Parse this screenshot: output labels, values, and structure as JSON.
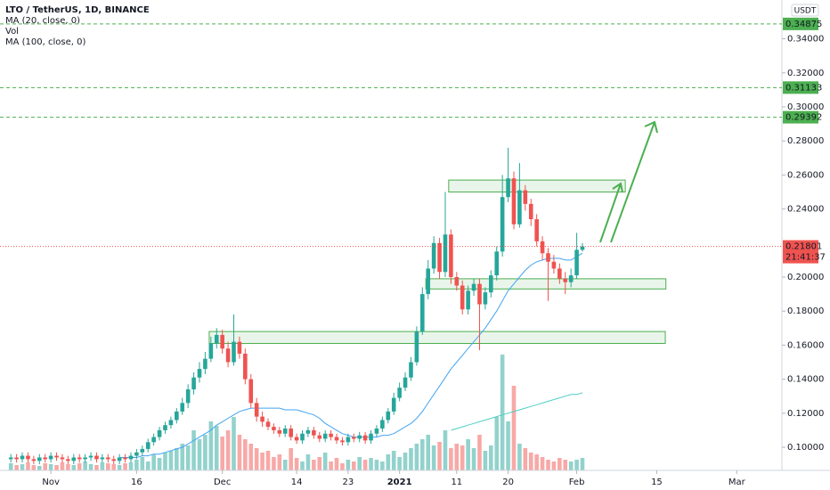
{
  "chart_data": {
    "type": "candlestick",
    "title": "LTO / TetherUS, 1D, BINANCE",
    "currency": "USDT",
    "up_color": "#26a69a",
    "down_color": "#ef5350",
    "xlim": [
      -8.9,
      127.9
    ],
    "xticks": [
      {
        "value": 0,
        "label": "Nov"
      },
      {
        "value": 15,
        "label": "16"
      },
      {
        "value": 30,
        "label": "Dec"
      },
      {
        "value": 43,
        "label": "14"
      },
      {
        "value": 52,
        "label": "23"
      },
      {
        "value": 61,
        "label": "2021"
      },
      {
        "value": 71,
        "label": "11"
      },
      {
        "value": 80,
        "label": "20"
      },
      {
        "value": 92,
        "label": "Feb"
      },
      {
        "value": 106,
        "label": "15"
      },
      {
        "value": 120,
        "label": "Mar"
      }
    ],
    "ylim": [
      0.0864,
      0.3628
    ],
    "yticks": [
      {
        "value": 0.1,
        "label": "0.10000"
      },
      {
        "value": 0.12,
        "label": "0.12000"
      },
      {
        "value": 0.14,
        "label": "0.14000"
      },
      {
        "value": 0.16,
        "label": "0.16000"
      },
      {
        "value": 0.18,
        "label": "0.18000"
      },
      {
        "value": 0.2,
        "label": "0.20000"
      },
      {
        "value": 0.24,
        "label": "0.24000"
      },
      {
        "value": 0.26,
        "label": "0.26000"
      },
      {
        "value": 0.28,
        "label": "0.28000"
      },
      {
        "value": 0.3,
        "label": "0.30000"
      },
      {
        "value": 0.32,
        "label": "0.32000"
      },
      {
        "value": 0.34,
        "label": "0.34000"
      }
    ],
    "x": [
      -7,
      -6,
      -5,
      -4,
      -3,
      -2,
      -1,
      0,
      1,
      2,
      3,
      4,
      5,
      6,
      7,
      8,
      9,
      10,
      11,
      12,
      13,
      14,
      15,
      16,
      17,
      18,
      19,
      20,
      21,
      22,
      23,
      24,
      25,
      26,
      27,
      28,
      29,
      30,
      31,
      32,
      33,
      34,
      35,
      36,
      37,
      38,
      39,
      40,
      41,
      42,
      43,
      44,
      45,
      46,
      47,
      48,
      49,
      50,
      51,
      52,
      53,
      54,
      55,
      56,
      57,
      58,
      59,
      60,
      61,
      62,
      63,
      64,
      65,
      66,
      67,
      68,
      69,
      70,
      71,
      72,
      73,
      74,
      75,
      76,
      77,
      78,
      79,
      80,
      81,
      82,
      83,
      84,
      85,
      86,
      87,
      88,
      89,
      90,
      91,
      92,
      93
    ],
    "open": [
      0.093,
      0.094,
      0.093,
      0.095,
      0.093,
      0.092,
      0.094,
      0.093,
      0.095,
      0.094,
      0.093,
      0.092,
      0.094,
      0.093,
      0.094,
      0.095,
      0.093,
      0.094,
      0.093,
      0.092,
      0.094,
      0.093,
      0.095,
      0.097,
      0.099,
      0.103,
      0.106,
      0.11,
      0.113,
      0.116,
      0.121,
      0.126,
      0.134,
      0.141,
      0.146,
      0.152,
      0.161,
      0.166,
      0.158,
      0.15,
      0.162,
      0.155,
      0.14,
      0.126,
      0.118,
      0.115,
      0.112,
      0.11,
      0.108,
      0.111,
      0.106,
      0.104,
      0.108,
      0.11,
      0.107,
      0.105,
      0.108,
      0.106,
      0.104,
      0.103,
      0.106,
      0.105,
      0.107,
      0.104,
      0.108,
      0.111,
      0.116,
      0.121,
      0.129,
      0.135,
      0.141,
      0.15,
      0.168,
      0.19,
      0.205,
      0.22,
      0.203,
      0.225,
      0.2,
      0.195,
      0.181,
      0.192,
      0.196,
      0.184,
      0.191,
      0.201,
      0.215,
      0.247,
      0.258,
      0.231,
      0.251,
      0.243,
      0.234,
      0.221,
      0.214,
      0.209,
      0.205,
      0.199,
      0.197,
      0.201,
      0.216
    ],
    "high": [
      0.096,
      0.096,
      0.097,
      0.097,
      0.095,
      0.096,
      0.096,
      0.097,
      0.097,
      0.096,
      0.095,
      0.096,
      0.096,
      0.096,
      0.097,
      0.097,
      0.096,
      0.096,
      0.095,
      0.096,
      0.096,
      0.097,
      0.099,
      0.101,
      0.105,
      0.108,
      0.112,
      0.115,
      0.118,
      0.123,
      0.129,
      0.137,
      0.144,
      0.15,
      0.156,
      0.165,
      0.17,
      0.169,
      0.162,
      0.178,
      0.165,
      0.158,
      0.143,
      0.129,
      0.121,
      0.117,
      0.114,
      0.112,
      0.113,
      0.113,
      0.108,
      0.11,
      0.112,
      0.112,
      0.109,
      0.11,
      0.11,
      0.108,
      0.106,
      0.108,
      0.108,
      0.109,
      0.109,
      0.11,
      0.113,
      0.118,
      0.123,
      0.132,
      0.138,
      0.144,
      0.153,
      0.171,
      0.194,
      0.21,
      0.224,
      0.223,
      0.25,
      0.228,
      0.203,
      0.198,
      0.195,
      0.199,
      0.199,
      0.194,
      0.204,
      0.218,
      0.26,
      0.276,
      0.262,
      0.267,
      0.254,
      0.246,
      0.237,
      0.224,
      0.217,
      0.213,
      0.208,
      0.203,
      0.205,
      0.226,
      0.22
    ],
    "low": [
      0.091,
      0.091,
      0.091,
      0.091,
      0.09,
      0.09,
      0.091,
      0.091,
      0.092,
      0.091,
      0.09,
      0.09,
      0.091,
      0.091,
      0.092,
      0.091,
      0.091,
      0.091,
      0.09,
      0.09,
      0.091,
      0.091,
      0.093,
      0.095,
      0.097,
      0.101,
      0.104,
      0.108,
      0.111,
      0.114,
      0.119,
      0.123,
      0.131,
      0.138,
      0.143,
      0.15,
      0.158,
      0.155,
      0.147,
      0.148,
      0.152,
      0.137,
      0.123,
      0.115,
      0.112,
      0.11,
      0.108,
      0.106,
      0.106,
      0.104,
      0.102,
      0.102,
      0.106,
      0.105,
      0.103,
      0.103,
      0.104,
      0.102,
      0.101,
      0.101,
      0.103,
      0.103,
      0.102,
      0.102,
      0.106,
      0.109,
      0.114,
      0.119,
      0.127,
      0.133,
      0.139,
      0.148,
      0.166,
      0.187,
      0.202,
      0.199,
      0.2,
      0.196,
      0.192,
      0.178,
      0.178,
      0.189,
      0.157,
      0.181,
      0.188,
      0.198,
      0.212,
      0.244,
      0.228,
      0.229,
      0.239,
      0.23,
      0.218,
      0.21,
      0.186,
      0.202,
      0.196,
      0.19,
      0.194,
      0.199,
      0.215
    ],
    "close": [
      0.094,
      0.093,
      0.095,
      0.093,
      0.092,
      0.094,
      0.093,
      0.095,
      0.094,
      0.093,
      0.092,
      0.094,
      0.093,
      0.094,
      0.095,
      0.093,
      0.094,
      0.093,
      0.092,
      0.094,
      0.093,
      0.095,
      0.097,
      0.099,
      0.103,
      0.106,
      0.11,
      0.113,
      0.116,
      0.121,
      0.126,
      0.134,
      0.141,
      0.146,
      0.152,
      0.161,
      0.166,
      0.158,
      0.15,
      0.162,
      0.155,
      0.14,
      0.126,
      0.118,
      0.115,
      0.112,
      0.11,
      0.108,
      0.111,
      0.106,
      0.104,
      0.108,
      0.11,
      0.107,
      0.105,
      0.108,
      0.106,
      0.104,
      0.103,
      0.106,
      0.105,
      0.107,
      0.104,
      0.108,
      0.111,
      0.116,
      0.121,
      0.129,
      0.135,
      0.141,
      0.15,
      0.168,
      0.19,
      0.205,
      0.22,
      0.203,
      0.225,
      0.2,
      0.195,
      0.181,
      0.192,
      0.196,
      0.184,
      0.191,
      0.201,
      0.215,
      0.247,
      0.258,
      0.231,
      0.251,
      0.243,
      0.234,
      0.221,
      0.214,
      0.209,
      0.205,
      0.199,
      0.197,
      0.201,
      0.216,
      0.218
    ],
    "volume": {
      "name": "Vol",
      "vlim": [
        0,
        130
      ],
      "values": [
        8,
        6,
        7,
        9,
        6,
        5,
        8,
        7,
        6,
        9,
        7,
        6,
        8,
        10,
        7,
        6,
        9,
        8,
        7,
        6,
        8,
        9,
        12,
        15,
        10,
        18,
        14,
        20,
        22,
        25,
        30,
        28,
        45,
        35,
        40,
        55,
        50,
        38,
        45,
        60,
        40,
        35,
        30,
        25,
        20,
        22,
        15,
        18,
        12,
        25,
        14,
        10,
        18,
        12,
        15,
        20,
        10,
        14,
        8,
        12,
        10,
        15,
        12,
        14,
        12,
        10,
        18,
        22,
        15,
        20,
        25,
        30,
        35,
        40,
        28,
        32,
        45,
        25,
        30,
        28,
        35,
        25,
        40,
        22,
        28,
        60,
        130,
        55,
        95,
        30,
        25,
        20,
        18,
        15,
        12,
        10,
        14,
        12,
        10,
        12,
        14
      ]
    },
    "series": [
      {
        "name": "MA (20, close, 0)",
        "color": "#42a5f5",
        "values": [
          null,
          null,
          null,
          null,
          null,
          null,
          null,
          null,
          null,
          null,
          null,
          null,
          null,
          null,
          null,
          null,
          null,
          null,
          null,
          0.094,
          0.094,
          0.094,
          0.094,
          0.095,
          0.095,
          0.096,
          0.096,
          0.097,
          0.098,
          0.099,
          0.1,
          0.102,
          0.104,
          0.106,
          0.108,
          0.11,
          0.113,
          0.115,
          0.117,
          0.119,
          0.121,
          0.122,
          0.123,
          0.123,
          0.123,
          0.123,
          0.123,
          0.123,
          0.122,
          0.122,
          0.122,
          0.121,
          0.12,
          0.119,
          0.117,
          0.114,
          0.112,
          0.11,
          0.108,
          0.107,
          0.106,
          0.106,
          0.106,
          0.106,
          0.106,
          0.107,
          0.107,
          0.108,
          0.11,
          0.112,
          0.114,
          0.117,
          0.121,
          0.126,
          0.131,
          0.136,
          0.141,
          0.146,
          0.15,
          0.154,
          0.158,
          0.162,
          0.166,
          0.17,
          0.175,
          0.18,
          0.186,
          0.192,
          0.196,
          0.2,
          0.204,
          0.207,
          0.209,
          0.21,
          0.211,
          0.211,
          0.211,
          0.21,
          0.21,
          0.212,
          0.214
        ]
      },
      {
        "name": "MA (100, close, 0)",
        "color": "#4dd0c4",
        "values": [
          null,
          null,
          null,
          null,
          null,
          null,
          null,
          null,
          null,
          null,
          null,
          null,
          null,
          null,
          null,
          null,
          null,
          null,
          null,
          null,
          null,
          null,
          null,
          null,
          null,
          null,
          null,
          null,
          null,
          null,
          null,
          null,
          null,
          null,
          null,
          null,
          null,
          null,
          null,
          null,
          null,
          null,
          null,
          null,
          null,
          null,
          null,
          null,
          null,
          null,
          null,
          null,
          null,
          null,
          null,
          null,
          null,
          null,
          null,
          null,
          null,
          null,
          null,
          null,
          null,
          null,
          null,
          null,
          null,
          null,
          null,
          null,
          null,
          null,
          null,
          null,
          null,
          0.11,
          0.111,
          0.112,
          0.113,
          0.114,
          0.115,
          0.116,
          0.117,
          0.118,
          0.119,
          0.12,
          0.121,
          0.122,
          0.123,
          0.124,
          0.125,
          0.126,
          0.127,
          0.128,
          0.129,
          0.13,
          0.131,
          0.131,
          0.132
        ]
      }
    ],
    "zones": [
      {
        "x": [
          69.6,
          100.5
        ],
        "y": [
          0.25,
          0.257
        ]
      },
      {
        "x": [
          65.6,
          107.6
        ],
        "y": [
          0.193,
          0.199
        ]
      },
      {
        "x": [
          27.7,
          107.5
        ],
        "y": [
          0.161,
          0.168
        ]
      }
    ],
    "levels": [
      {
        "value": 0.34875,
        "color": "#4caf50"
      },
      {
        "value": 0.31133,
        "color": "#4caf50"
      },
      {
        "value": 0.29392,
        "color": "#4caf50"
      }
    ],
    "last_price": {
      "value": 0.21801,
      "countdown": "21:41:37",
      "color": "#ef5350"
    }
  }
}
